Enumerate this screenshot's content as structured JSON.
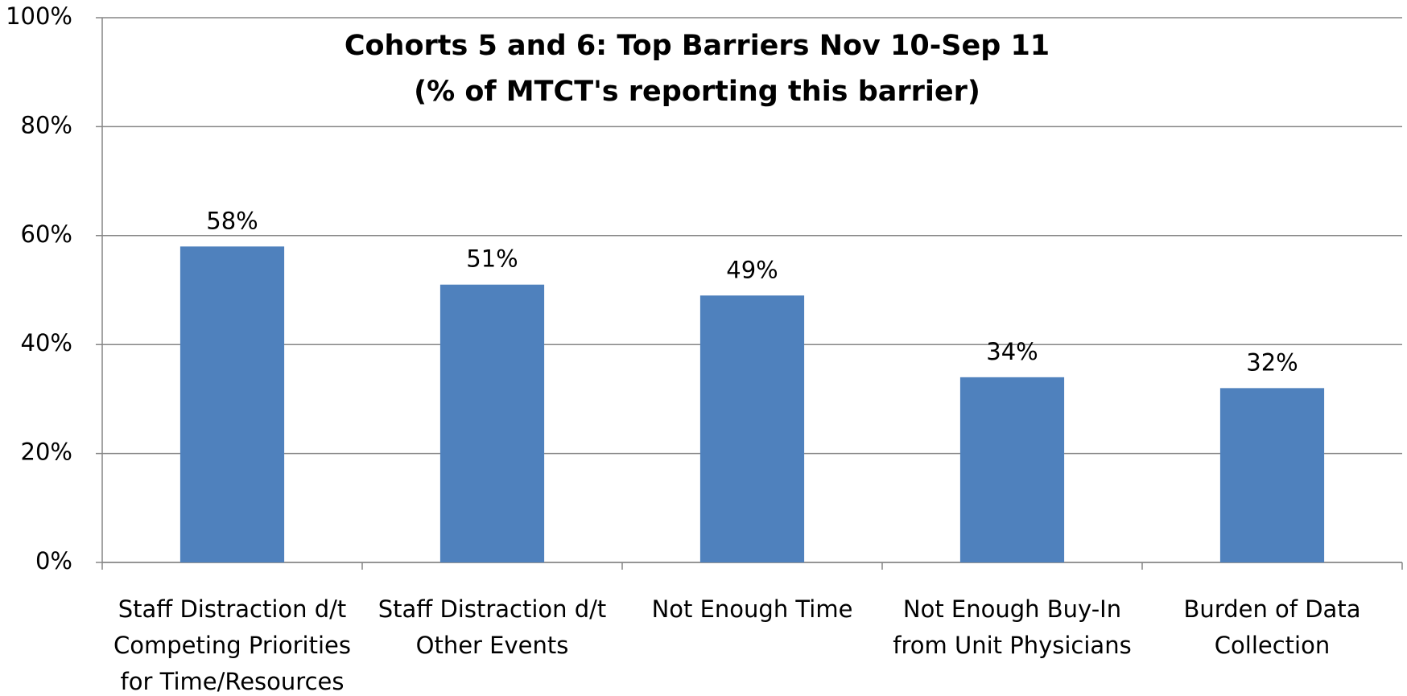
{
  "chart_data": {
    "type": "bar",
    "title": "Cohorts 5 and 6: Top Barriers Nov 10-Sep 11",
    "subtitle": "(% of MTCT's reporting this barrier)",
    "categories": [
      "Staff Distraction d/t Competing Priorities for Time/Resources",
      "Staff Distraction d/t Other Events",
      "Not Enough Time",
      "Not Enough Buy-In from Unit Physicians",
      "Burden of Data Collection"
    ],
    "values": [
      58,
      51,
      49,
      34,
      32
    ],
    "value_labels": [
      "58%",
      "51%",
      "49%",
      "34%",
      "32%"
    ],
    "color": "#4f81bd",
    "ylim": [
      0,
      100
    ],
    "yticks": [
      {
        "value": 0,
        "label": "0%"
      },
      {
        "value": 20,
        "label": "20%"
      },
      {
        "value": 40,
        "label": "40%"
      },
      {
        "value": 60,
        "label": "60%"
      },
      {
        "value": 80,
        "label": "80%"
      },
      {
        "value": 100,
        "label": "100%"
      }
    ],
    "grid": true
  }
}
